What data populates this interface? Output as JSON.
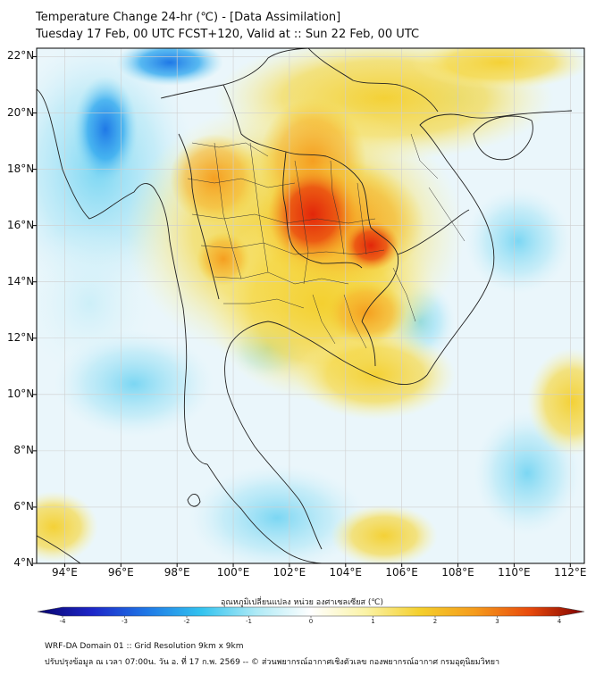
{
  "title": {
    "line1": "Temperature Change 24-hr (℃) - [Data Assimilation]",
    "line2": "Tuesday 17 Feb, 00 UTC FCST+120, Valid at :: Sun 22 Feb, 00 UTC"
  },
  "map": {
    "variable": "24-hr temperature change",
    "units": "°C",
    "lat_labels": [
      "22°N",
      "20°N",
      "18°N",
      "16°N",
      "14°N",
      "12°N",
      "10°N",
      "8°N",
      "6°N",
      "4°N"
    ],
    "lon_labels": [
      "94°E",
      "96°E",
      "98°E",
      "100°E",
      "102°E",
      "104°E",
      "106°E",
      "108°E",
      "110°E",
      "112°E"
    ],
    "extent": {
      "lon_min": 93,
      "lon_max": 112.5,
      "lat_min": 4,
      "lat_max": 22.3
    },
    "colors": {
      "border": "#222222",
      "grid": "#cfcfcf",
      "ocean": "#f3f7fa"
    }
  },
  "colorbar": {
    "label": "อุณหภูมิเปลี่ยนแปลง หน่วย องศาเซลเซียส (℃)",
    "ticks": [
      "-4",
      "-3",
      "-2",
      "-1",
      "0",
      "1",
      "2",
      "3",
      "4"
    ],
    "min": -4,
    "max": 4,
    "colors": [
      "#08046e",
      "#1d26c8",
      "#1f78e6",
      "#33c3ef",
      "#aeeaf6",
      "#ffffff",
      "#fbf3a6",
      "#f4cf2c",
      "#f59b1c",
      "#e84a0c",
      "#7e0000"
    ]
  },
  "footer": {
    "line1": "WRF-DA Domain 01 :: Grid Resolution 9km x 9km",
    "line2": "ปรับปรุงข้อมูล ณ เวลา 07:00น. วัน อ. ที่ 17 ก.พ. 2569 -- © ส่วนพยากรณ์อากาศเชิงตัวเลข กองพยากรณ์อากาศ กรมอุตุนิยมวิทยา"
  }
}
